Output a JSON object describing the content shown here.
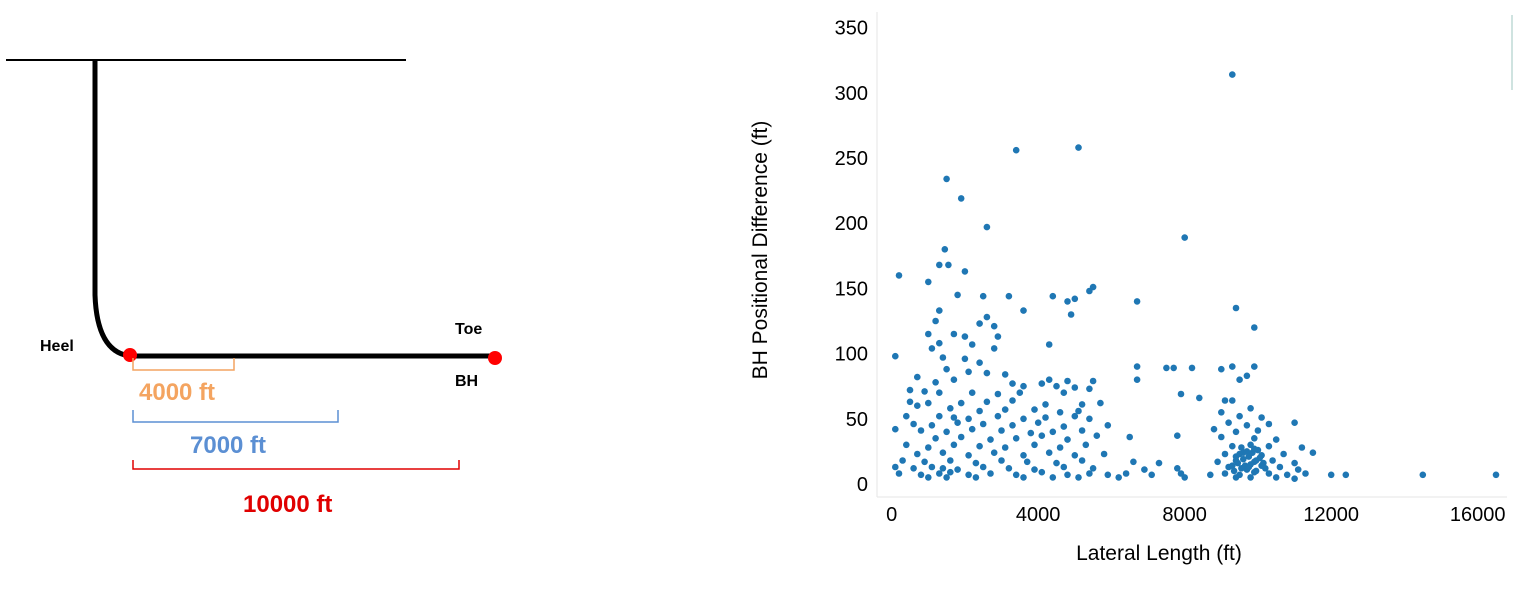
{
  "diagram": {
    "heel_label": "Heel",
    "toe_label": "Toe",
    "bh_label": "BH",
    "marks": [
      {
        "label": "4000 ft",
        "color": "#f4a460"
      },
      {
        "label": "7000 ft",
        "color": "#5b8fd3"
      },
      {
        "label": "10000 ft",
        "color": "#e00000"
      }
    ],
    "well_color": "#000000",
    "point_color": "#ff0000"
  },
  "chart_data": {
    "type": "scatter",
    "title": "",
    "xlabel": "Lateral Length (ft)",
    "ylabel": "BH Positional Difference (ft)",
    "xlim": [
      -400,
      16800
    ],
    "ylim": [
      -10,
      362
    ],
    "xticks": [
      0,
      4000,
      8000,
      12000,
      16000
    ],
    "yticks": [
      0,
      50,
      100,
      150,
      200,
      250,
      300,
      350
    ],
    "grid": false,
    "point_color": "#1f77b4",
    "points": [
      [
        9300,
        314
      ],
      [
        3400,
        256
      ],
      [
        5100,
        258
      ],
      [
        1500,
        234
      ],
      [
        1900,
        219
      ],
      [
        2600,
        197
      ],
      [
        8000,
        189
      ],
      [
        1450,
        180
      ],
      [
        1300,
        168
      ],
      [
        1550,
        168
      ],
      [
        2000,
        163
      ],
      [
        200,
        160
      ],
      [
        1000,
        155
      ],
      [
        5500,
        151
      ],
      [
        5400,
        148
      ],
      [
        1800,
        145
      ],
      [
        2500,
        144
      ],
      [
        3200,
        144
      ],
      [
        4400,
        144
      ],
      [
        5000,
        142
      ],
      [
        4800,
        140
      ],
      [
        6700,
        140
      ],
      [
        9400,
        135
      ],
      [
        1300,
        133
      ],
      [
        3600,
        133
      ],
      [
        4900,
        130
      ],
      [
        2600,
        128
      ],
      [
        1200,
        125
      ],
      [
        2400,
        123
      ],
      [
        2800,
        121
      ],
      [
        9900,
        120
      ],
      [
        1000,
        115
      ],
      [
        1700,
        115
      ],
      [
        2000,
        113
      ],
      [
        2900,
        113
      ],
      [
        1300,
        108
      ],
      [
        2200,
        107
      ],
      [
        4300,
        107
      ],
      [
        1100,
        104
      ],
      [
        2800,
        104
      ],
      [
        100,
        98
      ],
      [
        1400,
        97
      ],
      [
        2000,
        96
      ],
      [
        2400,
        93
      ],
      [
        6700,
        90
      ],
      [
        7500,
        89
      ],
      [
        7700,
        89
      ],
      [
        8200,
        89
      ],
      [
        9000,
        88
      ],
      [
        9300,
        90
      ],
      [
        9900,
        90
      ],
      [
        1500,
        88
      ],
      [
        2100,
        86
      ],
      [
        2600,
        85
      ],
      [
        3100,
        84
      ],
      [
        6700,
        80
      ],
      [
        9700,
        83
      ],
      [
        9500,
        80
      ],
      [
        4300,
        80
      ],
      [
        4800,
        79
      ],
      [
        5500,
        79
      ],
      [
        700,
        82
      ],
      [
        1200,
        78
      ],
      [
        1700,
        80
      ],
      [
        3300,
        77
      ],
      [
        3600,
        75
      ],
      [
        4100,
        77
      ],
      [
        4500,
        75
      ],
      [
        5000,
        74
      ],
      [
        5400,
        73
      ],
      [
        500,
        72
      ],
      [
        900,
        71
      ],
      [
        1300,
        70
      ],
      [
        2200,
        70
      ],
      [
        2900,
        69
      ],
      [
        3500,
        70
      ],
      [
        4700,
        70
      ],
      [
        7900,
        69
      ],
      [
        9100,
        64
      ],
      [
        500,
        63
      ],
      [
        1000,
        62
      ],
      [
        1900,
        62
      ],
      [
        2600,
        63
      ],
      [
        3300,
        64
      ],
      [
        4200,
        61
      ],
      [
        5200,
        61
      ],
      [
        5700,
        62
      ],
      [
        8400,
        66
      ],
      [
        9300,
        64
      ],
      [
        700,
        60
      ],
      [
        1600,
        58
      ],
      [
        2400,
        56
      ],
      [
        3100,
        57
      ],
      [
        3900,
        57
      ],
      [
        4600,
        55
      ],
      [
        5100,
        56
      ],
      [
        9000,
        55
      ],
      [
        9800,
        58
      ],
      [
        400,
        52
      ],
      [
        1300,
        52
      ],
      [
        1700,
        51
      ],
      [
        2100,
        50
      ],
      [
        2900,
        52
      ],
      [
        3600,
        50
      ],
      [
        4200,
        51
      ],
      [
        5000,
        52
      ],
      [
        5400,
        50
      ],
      [
        9500,
        52
      ],
      [
        10100,
        51
      ],
      [
        600,
        46
      ],
      [
        1100,
        45
      ],
      [
        1800,
        47
      ],
      [
        2500,
        46
      ],
      [
        3300,
        45
      ],
      [
        4000,
        47
      ],
      [
        4700,
        44
      ],
      [
        5900,
        45
      ],
      [
        9200,
        47
      ],
      [
        9700,
        45
      ],
      [
        10300,
        46
      ],
      [
        11000,
        47
      ],
      [
        800,
        41
      ],
      [
        1500,
        40
      ],
      [
        2200,
        42
      ],
      [
        3000,
        41
      ],
      [
        3800,
        39
      ],
      [
        4400,
        40
      ],
      [
        5200,
        41
      ],
      [
        8800,
        42
      ],
      [
        9400,
        40
      ],
      [
        10000,
        41
      ],
      [
        100,
        42
      ],
      [
        1200,
        35
      ],
      [
        1900,
        36
      ],
      [
        2700,
        34
      ],
      [
        3400,
        35
      ],
      [
        4100,
        37
      ],
      [
        4800,
        34
      ],
      [
        5600,
        37
      ],
      [
        6500,
        36
      ],
      [
        7800,
        37
      ],
      [
        9000,
        36
      ],
      [
        9900,
        35
      ],
      [
        10500,
        34
      ],
      [
        400,
        30
      ],
      [
        1000,
        28
      ],
      [
        1700,
        30
      ],
      [
        2400,
        29
      ],
      [
        3100,
        28
      ],
      [
        3900,
        30
      ],
      [
        4600,
        28
      ],
      [
        5300,
        30
      ],
      [
        9300,
        29
      ],
      [
        9800,
        30
      ],
      [
        10300,
        29
      ],
      [
        11200,
        28
      ],
      [
        700,
        23
      ],
      [
        1400,
        24
      ],
      [
        2100,
        22
      ],
      [
        2800,
        24
      ],
      [
        3600,
        22
      ],
      [
        4300,
        24
      ],
      [
        5000,
        22
      ],
      [
        5800,
        23
      ],
      [
        9100,
        23
      ],
      [
        9600,
        24
      ],
      [
        10100,
        22
      ],
      [
        10700,
        23
      ],
      [
        11500,
        24
      ],
      [
        300,
        18
      ],
      [
        900,
        17
      ],
      [
        1600,
        18
      ],
      [
        2300,
        16
      ],
      [
        3000,
        18
      ],
      [
        3700,
        17
      ],
      [
        4500,
        16
      ],
      [
        5200,
        18
      ],
      [
        6600,
        17
      ],
      [
        7300,
        16
      ],
      [
        8900,
        17
      ],
      [
        9400,
        18
      ],
      [
        9900,
        17
      ],
      [
        10400,
        18
      ],
      [
        11000,
        16
      ],
      [
        100,
        13
      ],
      [
        600,
        12
      ],
      [
        1100,
        13
      ],
      [
        1400,
        12
      ],
      [
        1800,
        11
      ],
      [
        2500,
        13
      ],
      [
        3200,
        12
      ],
      [
        3900,
        11
      ],
      [
        4700,
        13
      ],
      [
        5500,
        12
      ],
      [
        6900,
        11
      ],
      [
        7800,
        12
      ],
      [
        9200,
        13
      ],
      [
        9700,
        11
      ],
      [
        10200,
        12
      ],
      [
        10600,
        13
      ],
      [
        11100,
        11
      ],
      [
        200,
        8
      ],
      [
        800,
        7
      ],
      [
        1300,
        8
      ],
      [
        1600,
        9
      ],
      [
        2100,
        7
      ],
      [
        2700,
        8
      ],
      [
        3400,
        7
      ],
      [
        4100,
        9
      ],
      [
        4800,
        7
      ],
      [
        5400,
        8
      ],
      [
        5900,
        7
      ],
      [
        6400,
        8
      ],
      [
        7100,
        7
      ],
      [
        7900,
        8
      ],
      [
        8700,
        7
      ],
      [
        9100,
        8
      ],
      [
        9500,
        7
      ],
      [
        9900,
        9
      ],
      [
        10300,
        8
      ],
      [
        10800,
        7
      ],
      [
        11300,
        8
      ],
      [
        12000,
        7
      ],
      [
        12400,
        7
      ],
      [
        14500,
        7
      ],
      [
        16500,
        7
      ],
      [
        1000,
        5
      ],
      [
        1500,
        5
      ],
      [
        2300,
        5
      ],
      [
        3600,
        5
      ],
      [
        4400,
        5
      ],
      [
        5100,
        5
      ],
      [
        6200,
        5
      ],
      [
        8000,
        5
      ],
      [
        9400,
        5
      ],
      [
        9800,
        5
      ],
      [
        10500,
        5
      ],
      [
        11000,
        4
      ],
      [
        9300,
        14
      ],
      [
        9450,
        16
      ],
      [
        9600,
        19
      ],
      [
        9750,
        21
      ],
      [
        9850,
        24
      ],
      [
        10000,
        26
      ],
      [
        9550,
        28
      ],
      [
        9650,
        14
      ],
      [
        9800,
        15
      ],
      [
        9950,
        18
      ],
      [
        10050,
        20
      ],
      [
        9400,
        21
      ],
      [
        9500,
        23
      ],
      [
        9700,
        25
      ],
      [
        9900,
        27
      ],
      [
        10150,
        16
      ],
      [
        9350,
        10
      ],
      [
        9550,
        12
      ],
      [
        9750,
        13
      ],
      [
        9950,
        10
      ],
      [
        10100,
        14
      ]
    ]
  }
}
